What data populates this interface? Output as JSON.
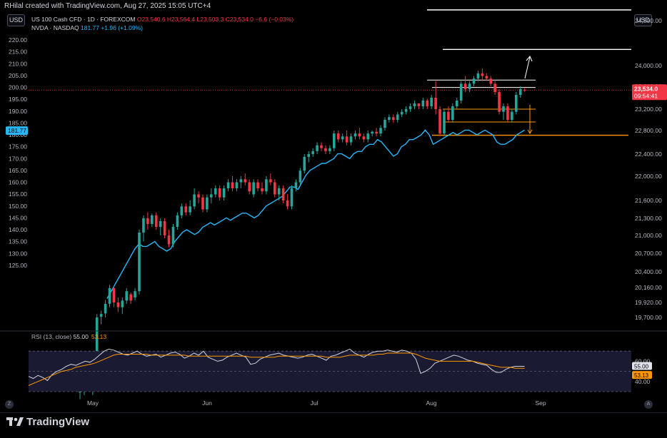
{
  "caption": "RHilal created with TradingView.com, Aug 27, 2025 15:05 UTC+4",
  "left_currency": "USD",
  "right_currency": "USD",
  "legend_main": {
    "title": "US 100 Cash CFD · 1D · FOREXCOM",
    "values": "O23,540.6 H23,564.4 L23,503.3 C23,534.0 −6.6 (−0.03%)"
  },
  "legend_second": {
    "title": "NVDA · NASDAQ",
    "values": "181.77 +1.96 (+1.09%)"
  },
  "corner_letters": {
    "left": "Z",
    "right": "A"
  },
  "brand": "TradingView",
  "colors": {
    "up": "#26a69a",
    "down": "#f23645",
    "nvda": "#29b6f6",
    "rsi": "#d1d4dc",
    "rsi_ma": "#ff9800",
    "level_orange": "#ff9800",
    "level_white": "#ffffff",
    "rsi_band": "#1b1a33"
  },
  "chart_data": [
    {
      "type": "candlestick",
      "series_name": "US 100 Cash CFD",
      "right_axis_ticks": [
        "24,500.00",
        "24,000.00",
        "23,600.00",
        "23,200.00",
        "22,800.00",
        "22,400.00",
        "22,000.00",
        "21,600.00",
        "21,300.00",
        "21,000.00",
        "20,700.00",
        "20,400.00",
        "20,160.00",
        "19,920.00",
        "19,700.00"
      ],
      "current_price": "23,534.0",
      "countdown": "09:54:41",
      "x_labels": [
        "May",
        "Jun",
        "Jul",
        "Aug",
        "Sep"
      ],
      "ohlc_recent": [
        {
          "o": 23540.6,
          "h": 23564.4,
          "l": 23503.3,
          "c": 23534.0
        }
      ],
      "ohlc": [
        [
          18600,
          18700,
          18500,
          18650
        ],
        [
          18660,
          18760,
          18560,
          18720
        ],
        [
          18730,
          18800,
          18620,
          18650
        ],
        [
          18650,
          18760,
          18560,
          18700
        ],
        [
          18720,
          19750,
          18700,
          19700
        ],
        [
          19710,
          19800,
          19600,
          19750
        ],
        [
          19760,
          19960,
          19700,
          19900
        ],
        [
          19900,
          20200,
          19850,
          20150
        ],
        [
          20150,
          20180,
          19850,
          19920
        ],
        [
          19920,
          20000,
          19780,
          19850
        ],
        [
          19850,
          20000,
          19750,
          19950
        ],
        [
          19950,
          20150,
          19900,
          20100
        ],
        [
          20050,
          20080,
          19900,
          19950
        ],
        [
          20000,
          20150,
          19950,
          20100
        ],
        [
          20100,
          21100,
          20050,
          21050
        ],
        [
          21050,
          21350,
          20900,
          21300
        ],
        [
          21300,
          21400,
          21100,
          21200
        ],
        [
          21200,
          21380,
          21150,
          21350
        ],
        [
          21350,
          21400,
          21100,
          21150
        ],
        [
          21150,
          21300,
          21000,
          21250
        ],
        [
          21250,
          21300,
          20950,
          21000
        ],
        [
          21000,
          21100,
          20800,
          20850
        ],
        [
          20850,
          21200,
          20800,
          21150
        ],
        [
          21150,
          21400,
          21100,
          21350
        ],
        [
          21350,
          21550,
          21300,
          21500
        ],
        [
          21500,
          21550,
          21350,
          21400
        ],
        [
          21400,
          21600,
          21350,
          21500
        ],
        [
          21500,
          21800,
          21450,
          21700
        ],
        [
          21700,
          21750,
          21550,
          21650
        ],
        [
          21650,
          21700,
          21400,
          21450
        ],
        [
          21450,
          21700,
          21400,
          21650
        ],
        [
          21650,
          21800,
          21550,
          21700
        ],
        [
          21700,
          21850,
          21650,
          21800
        ],
        [
          21800,
          21850,
          21600,
          21650
        ],
        [
          21650,
          21850,
          21600,
          21800
        ],
        [
          21800,
          21950,
          21750,
          21900
        ],
        [
          21900,
          22000,
          21750,
          21800
        ],
        [
          21800,
          21950,
          21750,
          21900
        ],
        [
          21900,
          22000,
          21800,
          21950
        ],
        [
          21950,
          22050,
          21850,
          21900
        ],
        [
          21900,
          21950,
          21700,
          21750
        ],
        [
          21700,
          21950,
          21650,
          21900
        ],
        [
          21900,
          21950,
          21750,
          21800
        ],
        [
          21800,
          21900,
          21700,
          21750
        ],
        [
          21750,
          22000,
          21700,
          21950
        ],
        [
          21950,
          22050,
          21850,
          21900
        ],
        [
          21900,
          21950,
          21650,
          21700
        ],
        [
          21700,
          21850,
          21600,
          21800
        ],
        [
          21800,
          21850,
          21550,
          21600
        ],
        [
          21600,
          21700,
          21450,
          21500
        ],
        [
          21500,
          21850,
          21450,
          21800
        ],
        [
          21800,
          21950,
          21750,
          21900
        ],
        [
          21900,
          22150,
          21850,
          22100
        ],
        [
          22100,
          22400,
          22050,
          22350
        ],
        [
          22350,
          22450,
          22250,
          22400
        ],
        [
          22400,
          22500,
          22350,
          22450
        ],
        [
          22450,
          22600,
          22400,
          22550
        ],
        [
          22550,
          22600,
          22450,
          22500
        ],
        [
          22500,
          22550,
          22400,
          22450
        ],
        [
          22450,
          22550,
          22400,
          22500
        ],
        [
          22500,
          22800,
          22450,
          22750
        ],
        [
          22750,
          22800,
          22600,
          22650
        ],
        [
          22650,
          22750,
          22600,
          22700
        ],
        [
          22700,
          22800,
          22550,
          22600
        ],
        [
          22600,
          22750,
          22550,
          22700
        ],
        [
          22700,
          22800,
          22650,
          22750
        ],
        [
          22750,
          22850,
          22650,
          22700
        ],
        [
          22700,
          22750,
          22600,
          22650
        ],
        [
          22650,
          22800,
          22600,
          22750
        ],
        [
          22750,
          22800,
          22700,
          22780
        ],
        [
          22780,
          22850,
          22700,
          22750
        ],
        [
          22750,
          22900,
          22700,
          22850
        ],
        [
          22850,
          23050,
          22800,
          23000
        ],
        [
          23000,
          23100,
          22950,
          23050
        ],
        [
          23050,
          23100,
          22950,
          23000
        ],
        [
          23000,
          23150,
          22950,
          23100
        ],
        [
          23100,
          23200,
          23050,
          23150
        ],
        [
          23150,
          23250,
          23100,
          23200
        ],
        [
          23200,
          23300,
          23150,
          23250
        ],
        [
          23250,
          23350,
          23200,
          23300
        ],
        [
          23300,
          23250,
          23200,
          23250
        ],
        [
          23250,
          23400,
          23200,
          23350
        ],
        [
          23350,
          23380,
          23200,
          23250
        ],
        [
          23250,
          23450,
          23200,
          23400
        ],
        [
          23400,
          23700,
          23100,
          23200
        ],
        [
          23200,
          23250,
          22700,
          22750
        ],
        [
          22750,
          23200,
          22700,
          23150
        ],
        [
          23150,
          23250,
          22950,
          23000
        ],
        [
          23000,
          23300,
          22950,
          23250
        ],
        [
          23250,
          23400,
          23200,
          23350
        ],
        [
          23350,
          23700,
          23300,
          23650
        ],
        [
          23650,
          23800,
          23500,
          23550
        ],
        [
          23550,
          23700,
          23500,
          23650
        ],
        [
          23650,
          23800,
          23600,
          23750
        ],
        [
          23750,
          23900,
          23700,
          23850
        ],
        [
          23850,
          23950,
          23700,
          23800
        ],
        [
          23800,
          23850,
          23700,
          23750
        ],
        [
          23750,
          23800,
          23600,
          23650
        ],
        [
          23650,
          23700,
          23450,
          23500
        ],
        [
          23500,
          23550,
          23100,
          23150
        ],
        [
          23150,
          23300,
          23000,
          23250
        ],
        [
          23250,
          23300,
          22950,
          23000
        ],
        [
          23000,
          23200,
          22950,
          23150
        ],
        [
          23150,
          23500,
          23100,
          23450
        ],
        [
          23450,
          23600,
          23400,
          23550
        ],
        [
          23540,
          23564,
          23503,
          23534
        ]
      ]
    },
    {
      "type": "line",
      "series_name": "NVDA",
      "current_value": "181.77",
      "left_axis_ticks": [
        "220.00",
        "215.00",
        "210.00",
        "205.00",
        "200.00",
        "195.00",
        "190.00",
        "185.00",
        "180.00",
        "175.00",
        "170.00",
        "165.00",
        "160.00",
        "155.00",
        "150.00",
        "145.00",
        "140.00",
        "135.00",
        "130.00",
        "125.00"
      ],
      "values": [
        111,
        114,
        117,
        120,
        123,
        126,
        129,
        132,
        134,
        133,
        133,
        134,
        135,
        133,
        132,
        131,
        132,
        135,
        137,
        139,
        140,
        139,
        138,
        139,
        141,
        142,
        143,
        142,
        143,
        144,
        145,
        144,
        145,
        146,
        147,
        147,
        146,
        145,
        146,
        148,
        150,
        151,
        152,
        153,
        154,
        156,
        158,
        158,
        157,
        160,
        163,
        165,
        166,
        167,
        168,
        168,
        169,
        170,
        172,
        172,
        171,
        170,
        172,
        173,
        173,
        175,
        176,
        176,
        178,
        177,
        175,
        173,
        171,
        172,
        175,
        176,
        178,
        178,
        179,
        180,
        182,
        180,
        176,
        177,
        178,
        179,
        180,
        181,
        180,
        181,
        182,
        182,
        181,
        180,
        181,
        182,
        181,
        180,
        177,
        176,
        176,
        177,
        178,
        180,
        181,
        182
      ]
    },
    {
      "type": "line",
      "series_name": "RSI",
      "legend": "RSI (13, close)",
      "value": "55.00",
      "ma_value": "53.13",
      "axis_ticks": [
        "60.00",
        "40.00"
      ],
      "band": [
        30,
        70
      ],
      "values": [
        45,
        43,
        46,
        44,
        41,
        47,
        50,
        52,
        55,
        57,
        56,
        58,
        60,
        59,
        62,
        66,
        70,
        72,
        71,
        69,
        67,
        66,
        68,
        70,
        67,
        65,
        66,
        67,
        64,
        66,
        68,
        69,
        67,
        63,
        65,
        68,
        66,
        70,
        64,
        62,
        60,
        61,
        64,
        66,
        68,
        66,
        64,
        57,
        58,
        62,
        64,
        66,
        67,
        68,
        66,
        65,
        64,
        63,
        64,
        66,
        67,
        65,
        63,
        61,
        65,
        66,
        68,
        70,
        72,
        68,
        66,
        64,
        67,
        69,
        70,
        70,
        71,
        70,
        69,
        71,
        70,
        68,
        62,
        48,
        50,
        53,
        58,
        60,
        62,
        64,
        66,
        65,
        63,
        61,
        60,
        58,
        57,
        56,
        52,
        49,
        49,
        52,
        54,
        55,
        55,
        55
      ],
      "ma_values": [
        36,
        38,
        40,
        42,
        44,
        46,
        48,
        50,
        51,
        52,
        54,
        55,
        56,
        57,
        58,
        60,
        62,
        64,
        66,
        67,
        67,
        67,
        67,
        67,
        67,
        67,
        66,
        66,
        66,
        66,
        66,
        66,
        66,
        66,
        65,
        65,
        65,
        65,
        65,
        65,
        65,
        65,
        65,
        65,
        65,
        65,
        65,
        64,
        64,
        64,
        64,
        64,
        64,
        65,
        65,
        65,
        65,
        65,
        65,
        65,
        65,
        65,
        65,
        64,
        64,
        64,
        64,
        65,
        66,
        66,
        66,
        66,
        66,
        66,
        67,
        67,
        68,
        68,
        68,
        68,
        68,
        68,
        67,
        65,
        63,
        62,
        61,
        60,
        60,
        60,
        60,
        60,
        60,
        60,
        60,
        59,
        58,
        57,
        56,
        55,
        54,
        54,
        54,
        53,
        53,
        53
      ]
    }
  ]
}
